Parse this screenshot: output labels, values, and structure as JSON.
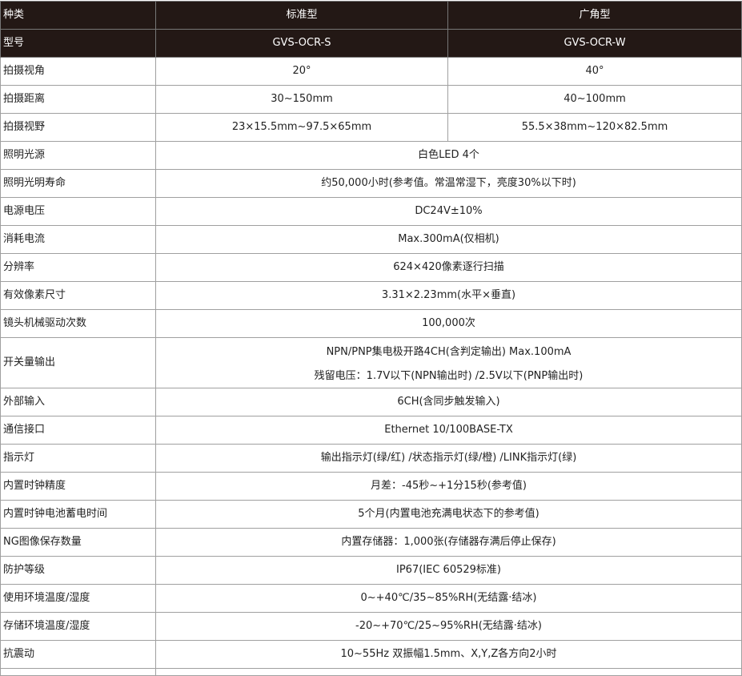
{
  "header_rows": [
    {
      "label": "种类",
      "values": [
        "标准型",
        "广角型"
      ]
    },
    {
      "label": "型号",
      "values": [
        "GVS-OCR-S",
        "GVS-OCR-W"
      ]
    }
  ],
  "rows": [
    {
      "label": "拍摄视角",
      "values": [
        "20°",
        "40°"
      ]
    },
    {
      "label": "拍摄距离",
      "values": [
        "30~150mm",
        "40~100mm"
      ]
    },
    {
      "label": "拍摄视野",
      "values": [
        "23×15.5mm~97.5×65mm",
        "55.5×38mm~120×82.5mm"
      ]
    },
    {
      "label": "照明光源",
      "value": "白色LED 4个"
    },
    {
      "label": "照明光明寿命",
      "value": "约50,000小时(参考值。常温常湿下，亮度30%以下时)"
    },
    {
      "label": "电源电压",
      "value": "DC24V±10%"
    },
    {
      "label": "消耗电流",
      "value": "Max.300mA(仅相机)"
    },
    {
      "label": "分辨率",
      "value": "624×420像素逐行扫描"
    },
    {
      "label": "有效像素尺寸",
      "value": "3.31×2.23mm(水平×垂直)"
    },
    {
      "label": "镜头机械驱动次数",
      "value": "100,000次"
    },
    {
      "label": "开关量输出",
      "lines": [
        "NPN/PNP集电极开路4CH(含判定输出) Max.100mA",
        "残留电压：1.7V以下(NPN输出时) /2.5V以下(PNP输出时)"
      ]
    },
    {
      "label": "外部输入",
      "value": "6CH(含同步触发输入)"
    },
    {
      "label": "通信接口",
      "value": "Ethernet 10/100BASE-TX"
    },
    {
      "label": "指示灯",
      "value": "输出指示灯(绿/红) /状态指示灯(绿/橙) /LINK指示灯(绿)"
    },
    {
      "label": "内置时钟精度",
      "value": "月差：-45秒~+1分15秒(参考值)"
    },
    {
      "label": "内置时钟电池蓄电时间",
      "value": "5个月(内置电池充满电状态下的参考值)"
    },
    {
      "label": "NG图像保存数量",
      "value": "内置存储器：1,000张(存储器存满后停止保存)"
    },
    {
      "label": "防护等级",
      "value": "IP67(IEC 60529标准)"
    },
    {
      "label": "使用环境温度/湿度",
      "value": "0~+40℃/35~85%RH(无结露·结冰)"
    },
    {
      "label": "存储环境温度/湿度",
      "value": "-20~+70℃/25~95%RH(无结露·结冰)"
    },
    {
      "label": "抗震动",
      "value": "10~55Hz 双振幅1.5mm、X,Y,Z各方向2小时"
    }
  ],
  "colors": {
    "header_bg": "#231815",
    "header_text": "#ffffff",
    "border": "#a0a0a0"
  }
}
